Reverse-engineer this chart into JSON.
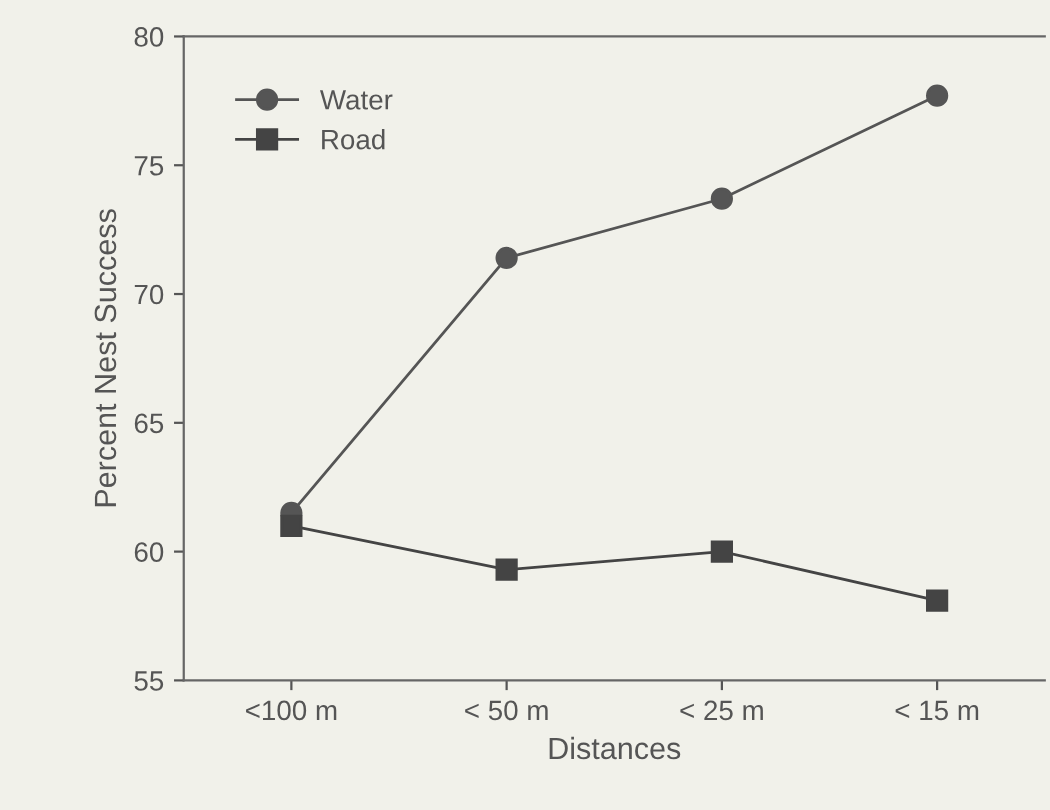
{
  "chart_data": {
    "type": "line",
    "xlabel": "Distances",
    "ylabel": "Percent Nest Success",
    "categories": [
      "<100 m",
      "< 50 m",
      "< 25 m",
      "< 15 m"
    ],
    "series": [
      {
        "name": "Water",
        "color": "#555555",
        "marker": "circle",
        "values": [
          61.5,
          71.4,
          73.7,
          77.7
        ]
      },
      {
        "name": "Road",
        "color": "#444444",
        "marker": "square",
        "values": [
          61.0,
          59.3,
          60.0,
          58.1
        ]
      }
    ],
    "ylim": [
      55,
      80
    ],
    "yticks": [
      55,
      60,
      65,
      70,
      75,
      80
    ],
    "grid": false,
    "legend": "top left"
  }
}
